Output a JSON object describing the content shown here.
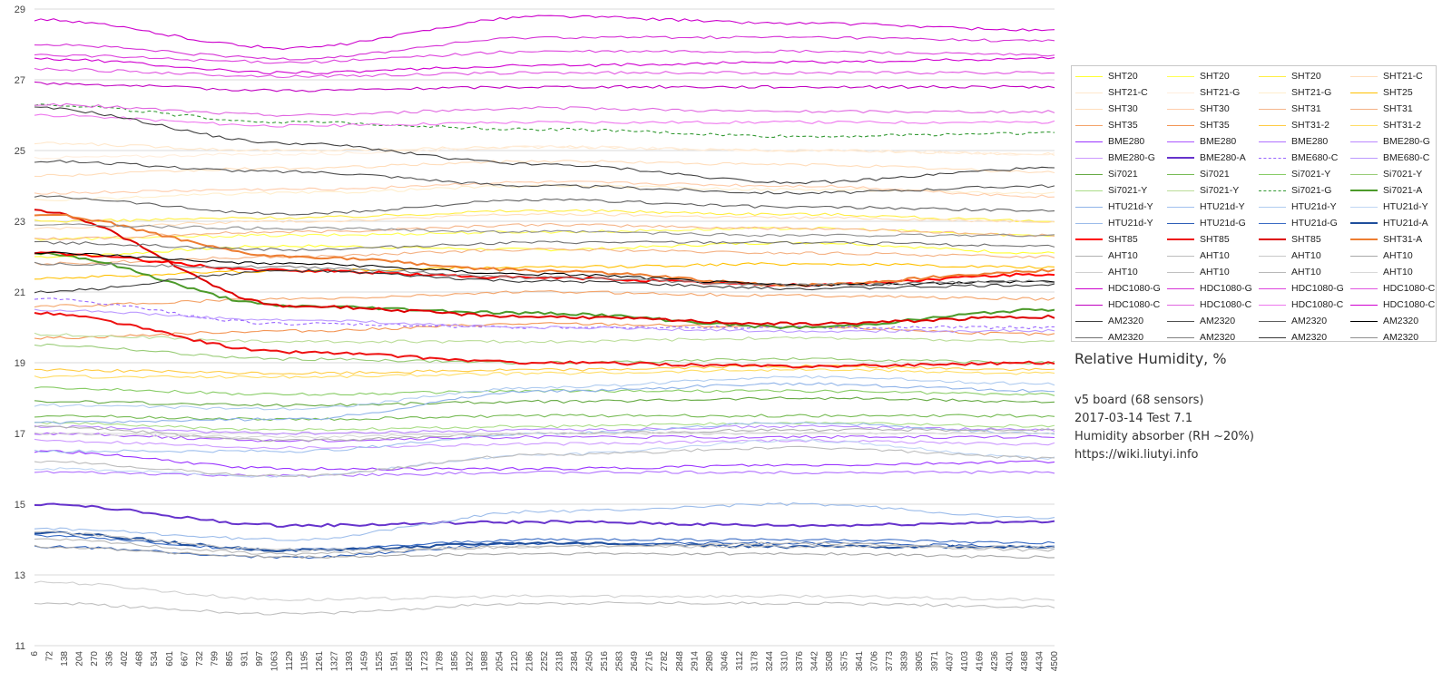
{
  "chart_data": {
    "type": "line",
    "title": "Relative Humidity, %",
    "subtitle_lines": [
      "v5 board (68 sensors)",
      "2017-03-14 Test 7.1",
      "Humidity absorber (RH ~20%)",
      "https://wiki.liutyi.info"
    ],
    "xlabel": "",
    "ylabel": "",
    "ylim": [
      11,
      29
    ],
    "y_ticks": [
      11,
      13,
      15,
      17,
      19,
      21,
      23,
      25,
      27,
      29
    ],
    "x_ticks": [
      6,
      72,
      138,
      204,
      270,
      336,
      402,
      468,
      534,
      601,
      667,
      732,
      799,
      865,
      931,
      997,
      1063,
      1129,
      1195,
      1261,
      1327,
      1393,
      1459,
      1525,
      1591,
      1658,
      1723,
      1789,
      1856,
      1922,
      1988,
      2054,
      2120,
      2186,
      2252,
      2318,
      2384,
      2450,
      2516,
      2583,
      2649,
      2716,
      2782,
      2848,
      2914,
      2980,
      3046,
      3112,
      3178,
      3244,
      3310,
      3376,
      3442,
      3508,
      3575,
      3641,
      3706,
      3773,
      3839,
      3905,
      3971,
      4037,
      4103,
      4169,
      4236,
      4301,
      4368,
      4434,
      4500
    ],
    "grid": "horizontal",
    "legend_placement": "right",
    "series": [
      {
        "name": "SHT20",
        "color": "#ffff33",
        "style": "solid",
        "values": [
          22.0,
          22.3,
          22.2,
          22.4,
          22.1
        ]
      },
      {
        "name": "SHT20",
        "color": "#ffff55",
        "style": "solid",
        "values": [
          22.5,
          22.6,
          22.7,
          22.8,
          22.6
        ]
      },
      {
        "name": "SHT20",
        "color": "#ffee44",
        "style": "solid",
        "values": [
          23.0,
          23.1,
          23.3,
          23.2,
          23.0
        ]
      },
      {
        "name": "SHT21-C",
        "color": "#ffddbb",
        "style": "solid",
        "values": [
          24.3,
          24.5,
          24.7,
          24.6,
          24.4
        ]
      },
      {
        "name": "SHT21-C",
        "color": "#ffe8cc",
        "style": "solid",
        "values": [
          25.2,
          25.0,
          25.1,
          25.0,
          24.9
        ]
      },
      {
        "name": "SHT21-G",
        "color": "#ffeedd",
        "style": "solid",
        "values": [
          24.8,
          24.9,
          25.1,
          25.0,
          24.9
        ]
      },
      {
        "name": "SHT21-G",
        "color": "#ffeecc",
        "style": "solid",
        "values": [
          23.6,
          23.8,
          24.0,
          23.9,
          23.8
        ]
      },
      {
        "name": "SHT25",
        "color": "#ffc000",
        "style": "solid",
        "values": [
          21.4,
          21.6,
          21.7,
          21.8,
          21.7
        ]
      },
      {
        "name": "SHT30",
        "color": "#ffddbb",
        "style": "solid",
        "values": [
          22.8,
          23.0,
          23.2,
          23.1,
          23.0
        ]
      },
      {
        "name": "SHT30",
        "color": "#ffccaa",
        "style": "solid",
        "values": [
          23.8,
          23.9,
          24.1,
          24.0,
          23.7
        ]
      },
      {
        "name": "SHT31",
        "color": "#f5b58a",
        "style": "solid",
        "values": [
          22.5,
          22.7,
          22.9,
          22.8,
          22.6
        ]
      },
      {
        "name": "SHT31",
        "color": "#f4b183",
        "style": "solid",
        "values": [
          21.8,
          22.0,
          22.2,
          22.1,
          22.0
        ]
      },
      {
        "name": "SHT35",
        "color": "#f4a46a",
        "style": "solid",
        "values": [
          20.6,
          20.8,
          21.0,
          20.9,
          20.8
        ]
      },
      {
        "name": "SHT35",
        "color": "#f39555",
        "style": "solid",
        "values": [
          19.7,
          19.9,
          20.1,
          20.0,
          19.8
        ]
      },
      {
        "name": "SHT31-2",
        "color": "#ffcc44",
        "style": "solid",
        "values": [
          18.8,
          18.7,
          18.8,
          18.9,
          18.8
        ]
      },
      {
        "name": "SHT31-2",
        "color": "#ffdd66",
        "style": "solid",
        "values": [
          18.6,
          18.6,
          18.7,
          18.8,
          18.7
        ]
      },
      {
        "name": "BME280",
        "color": "#9933ff",
        "style": "solid",
        "values": [
          16.5,
          16.0,
          16.0,
          16.1,
          16.2
        ]
      },
      {
        "name": "BME280",
        "color": "#aa55ff",
        "style": "solid",
        "values": [
          17.0,
          16.8,
          16.9,
          16.9,
          16.9
        ]
      },
      {
        "name": "BME280",
        "color": "#b070ff",
        "style": "solid",
        "values": [
          15.9,
          15.8,
          15.9,
          15.9,
          15.9
        ]
      },
      {
        "name": "BME280-G",
        "color": "#bb88ff",
        "style": "solid",
        "values": [
          17.2,
          17.0,
          17.1,
          17.2,
          17.1
        ]
      },
      {
        "name": "BME280-G",
        "color": "#cc99ff",
        "style": "solid",
        "values": [
          16.8,
          16.6,
          16.7,
          16.8,
          16.7
        ]
      },
      {
        "name": "BME280-A",
        "color": "#6633cc",
        "style": "solid",
        "values": [
          15.0,
          14.4,
          14.5,
          14.4,
          14.5
        ]
      },
      {
        "name": "BME680-C",
        "color": "#9966ff",
        "style": "dashed",
        "values": [
          20.8,
          20.1,
          20.0,
          20.0,
          20.0
        ]
      },
      {
        "name": "BME680-C",
        "color": "#bb99ff",
        "style": "solid",
        "values": [
          20.5,
          20.2,
          20.0,
          19.9,
          19.9
        ]
      },
      {
        "name": "Si7021",
        "color": "#66aa44",
        "style": "solid",
        "values": [
          17.9,
          17.8,
          17.9,
          18.0,
          17.9
        ]
      },
      {
        "name": "Si7021",
        "color": "#77bb55",
        "style": "solid",
        "values": [
          17.5,
          17.4,
          17.5,
          17.5,
          17.5
        ]
      },
      {
        "name": "Si7021-Y",
        "color": "#88cc66",
        "style": "solid",
        "values": [
          18.3,
          18.1,
          18.2,
          18.2,
          18.1
        ]
      },
      {
        "name": "Si7021-Y",
        "color": "#99cc77",
        "style": "solid",
        "values": [
          19.5,
          19.1,
          19.0,
          19.1,
          19.0
        ]
      },
      {
        "name": "Si7021-Y",
        "color": "#aadd88",
        "style": "solid",
        "values": [
          17.3,
          17.1,
          17.2,
          17.3,
          17.2
        ]
      },
      {
        "name": "Si7021-Y",
        "color": "#bbdd99",
        "style": "solid",
        "values": [
          19.8,
          19.6,
          19.6,
          19.7,
          19.6
        ]
      },
      {
        "name": "Si7021-G",
        "color": "#339933",
        "style": "dashed",
        "values": [
          26.3,
          25.8,
          25.6,
          25.4,
          25.5
        ]
      },
      {
        "name": "Si7021-A",
        "color": "#4c9a2a",
        "style": "solid",
        "values": [
          22.1,
          20.6,
          20.4,
          20.0,
          20.5
        ]
      },
      {
        "name": "HTU21d-Y",
        "color": "#8fb3e8",
        "style": "solid",
        "values": [
          17.3,
          17.4,
          18.2,
          18.4,
          18.2
        ]
      },
      {
        "name": "HTU21d-Y",
        "color": "#a0c0ee",
        "style": "solid",
        "values": [
          16.5,
          16.5,
          17.0,
          17.3,
          17.0
        ]
      },
      {
        "name": "HTU21d-Y",
        "color": "#b0ccf0",
        "style": "solid",
        "values": [
          17.8,
          17.7,
          18.3,
          18.6,
          18.4
        ]
      },
      {
        "name": "HTU21d-Y",
        "color": "#c0d6f4",
        "style": "solid",
        "values": [
          16.0,
          15.8,
          16.4,
          16.8,
          16.3
        ]
      },
      {
        "name": "HTU21d-Y",
        "color": "#9cbcea",
        "style": "solid",
        "values": [
          14.3,
          14.0,
          14.8,
          15.0,
          14.6
        ]
      },
      {
        "name": "HTU21d-G",
        "color": "#2e5fb8",
        "style": "solid",
        "values": [
          13.8,
          13.5,
          13.9,
          13.9,
          13.8
        ]
      },
      {
        "name": "HTU21d-G",
        "color": "#3a6cc4",
        "style": "solid",
        "values": [
          14.1,
          13.7,
          14.0,
          14.0,
          13.9
        ]
      },
      {
        "name": "HTU21d-A",
        "color": "#1f4e9c",
        "style": "solid",
        "values": [
          14.2,
          13.7,
          13.9,
          13.8,
          13.8
        ]
      },
      {
        "name": "SHT85",
        "color": "#ff0000",
        "style": "solid",
        "values": [
          22.1,
          21.6,
          21.4,
          21.2,
          21.5
        ]
      },
      {
        "name": "SHT85",
        "color": "#ee1111",
        "style": "solid",
        "values": [
          20.4,
          19.3,
          19.0,
          18.9,
          19.0
        ]
      },
      {
        "name": "SHT85",
        "color": "#dd0000",
        "style": "solid",
        "values": [
          23.3,
          20.6,
          20.3,
          20.1,
          20.3
        ]
      },
      {
        "name": "SHT31-A",
        "color": "#ed7d31",
        "style": "solid",
        "values": [
          23.2,
          22.0,
          21.6,
          21.2,
          21.6
        ]
      },
      {
        "name": "AHT10",
        "color": "#b0b0b0",
        "style": "solid",
        "values": [
          17.2,
          16.8,
          17.0,
          17.1,
          17.1
        ]
      },
      {
        "name": "AHT10",
        "color": "#bcbcbc",
        "style": "solid",
        "values": [
          16.2,
          15.8,
          16.4,
          16.6,
          16.3
        ]
      },
      {
        "name": "AHT10",
        "color": "#c8c8c8",
        "style": "solid",
        "values": [
          14.2,
          13.7,
          13.8,
          13.8,
          13.8
        ]
      },
      {
        "name": "AHT10",
        "color": "#a8a8a8",
        "style": "solid",
        "values": [
          13.8,
          13.5,
          13.6,
          13.6,
          13.5
        ]
      },
      {
        "name": "AHT10",
        "color": "#d0d0d0",
        "style": "solid",
        "values": [
          12.8,
          12.3,
          12.4,
          12.4,
          12.3
        ]
      },
      {
        "name": "AHT10",
        "color": "#c0c0c0",
        "style": "solid",
        "values": [
          12.2,
          11.9,
          12.2,
          12.2,
          12.1
        ]
      },
      {
        "name": "AHT10",
        "color": "#b8b8b8",
        "style": "solid",
        "values": [
          14.0,
          13.6,
          13.8,
          13.9,
          13.7
        ]
      },
      {
        "name": "AHT10",
        "color": "#d8d8d8",
        "style": "solid",
        "values": [
          17.0,
          16.9,
          17.0,
          17.0,
          17.0
        ]
      },
      {
        "name": "HDC1080-G",
        "color": "#cc00cc",
        "style": "solid",
        "values": [
          28.7,
          27.9,
          28.8,
          28.6,
          28.4
        ]
      },
      {
        "name": "HDC1080-G",
        "color": "#d633d6",
        "style": "solid",
        "values": [
          28.0,
          27.6,
          28.2,
          28.2,
          28.1
        ]
      },
      {
        "name": "HDC1080-G",
        "color": "#dd44dd",
        "style": "solid",
        "values": [
          27.7,
          27.5,
          27.8,
          27.8,
          27.7
        ]
      },
      {
        "name": "HDC1080-C",
        "color": "#e055e0",
        "style": "solid",
        "values": [
          27.3,
          27.1,
          27.2,
          27.2,
          27.2
        ]
      },
      {
        "name": "HDC1080-C",
        "color": "#c000c0",
        "style": "solid",
        "values": [
          26.9,
          26.7,
          26.8,
          26.8,
          26.8
        ]
      },
      {
        "name": "HDC1080-C",
        "color": "#e066e0",
        "style": "solid",
        "values": [
          26.3,
          26.0,
          26.2,
          26.1,
          26.1
        ]
      },
      {
        "name": "HDC1080-C",
        "color": "#ee77ee",
        "style": "solid",
        "values": [
          26.0,
          25.7,
          25.8,
          25.8,
          25.8
        ]
      },
      {
        "name": "HDC1080-C",
        "color": "#d000d0",
        "style": "solid",
        "values": [
          27.6,
          27.2,
          27.4,
          27.5,
          27.6
        ]
      },
      {
        "name": "AM2320",
        "color": "#404040",
        "style": "solid",
        "values": [
          26.2,
          25.2,
          24.6,
          24.1,
          24.5
        ]
      },
      {
        "name": "AM2320",
        "color": "#505050",
        "style": "solid",
        "values": [
          24.7,
          24.4,
          24.0,
          23.8,
          24.0
        ]
      },
      {
        "name": "AM2320",
        "color": "#606060",
        "style": "solid",
        "values": [
          23.7,
          23.2,
          23.6,
          23.4,
          23.3
        ]
      },
      {
        "name": "AM2320",
        "color": "#000000",
        "style": "solid",
        "values": [
          22.1,
          21.8,
          21.5,
          21.2,
          21.3
        ]
      },
      {
        "name": "AM2320",
        "color": "#707070",
        "style": "solid",
        "values": [
          22.4,
          22.2,
          22.4,
          22.4,
          22.3
        ]
      },
      {
        "name": "AM2320",
        "color": "#808080",
        "style": "solid",
        "values": [
          21.8,
          21.7,
          21.4,
          21.2,
          21.3
        ]
      },
      {
        "name": "AM2320",
        "color": "#383838",
        "style": "solid",
        "values": [
          21.0,
          21.6,
          21.3,
          21.1,
          21.2
        ]
      },
      {
        "name": "AM2320",
        "color": "#909090",
        "style": "solid",
        "values": [
          22.9,
          22.8,
          22.7,
          22.6,
          22.6
        ]
      }
    ]
  }
}
